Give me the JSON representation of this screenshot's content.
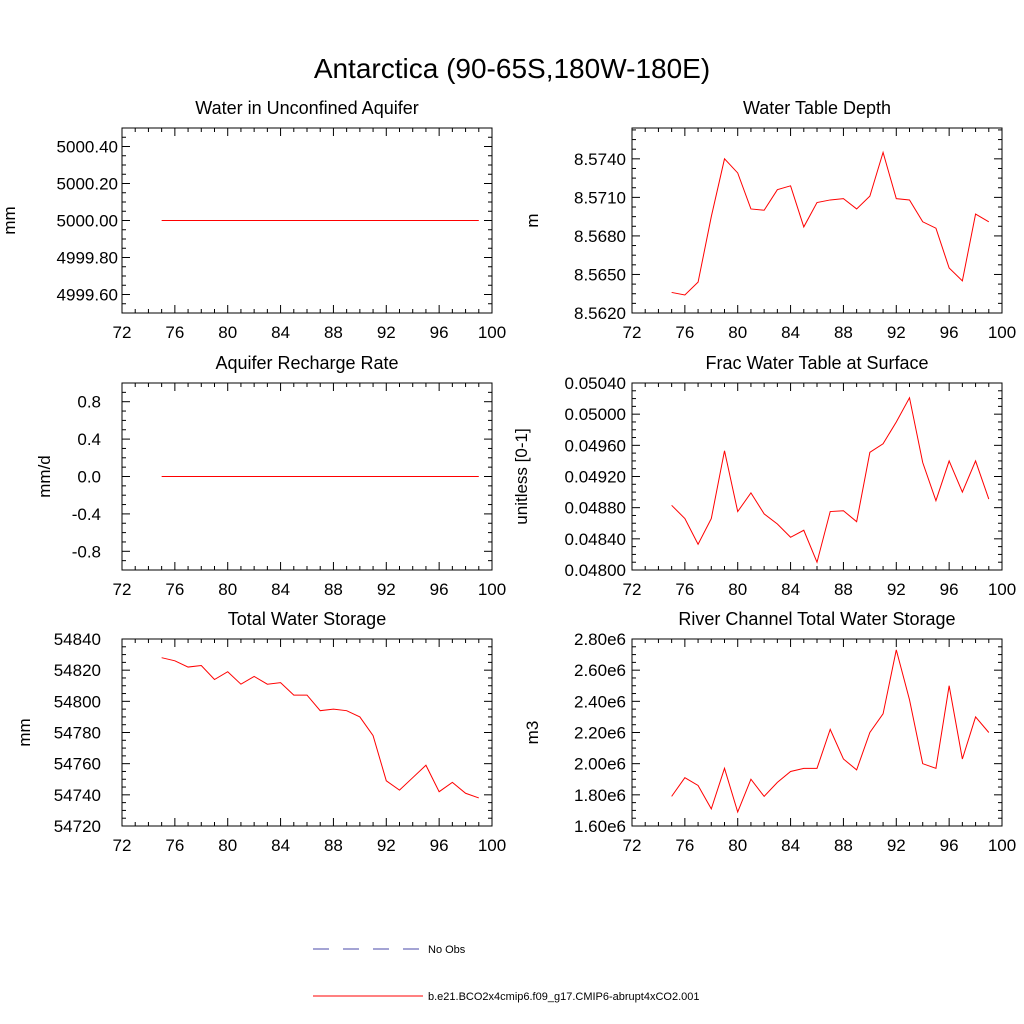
{
  "title": "Antarctica (90-65S,180W-180E)",
  "chart_data": [
    {
      "type": "line",
      "title": "Water in Unconfined Aquifer",
      "xlabel": "",
      "ylabel": "mm",
      "xlim": [
        72,
        100
      ],
      "ylim": [
        4999.5,
        5000.5
      ],
      "xticks": [
        72,
        76,
        80,
        84,
        88,
        92,
        96,
        100
      ],
      "xtick_labels": [
        "72",
        "76",
        "80",
        "84",
        "88",
        "92",
        "96",
        "100"
      ],
      "yticks": [
        4999.6,
        4999.8,
        5000.0,
        5000.2,
        5000.4
      ],
      "ytick_labels": [
        "4999.60",
        "4999.80",
        "5000.00",
        "5000.20",
        "5000.40"
      ],
      "series": [
        {
          "name": "b.e21.BCO2x4cmip6.f09_g17.CMIP6-abrupt4xCO2.001",
          "color": "#ff0000",
          "x": [
            75,
            76,
            77,
            78,
            79,
            80,
            81,
            82,
            83,
            84,
            85,
            86,
            87,
            88,
            89,
            90,
            91,
            92,
            93,
            94,
            95,
            96,
            97,
            98,
            99
          ],
          "values": [
            5000.0,
            5000.0,
            5000.0,
            5000.0,
            5000.0,
            5000.0,
            5000.0,
            5000.0,
            5000.0,
            5000.0,
            5000.0,
            5000.0,
            5000.0,
            5000.0,
            5000.0,
            5000.0,
            5000.0,
            5000.0,
            5000.0,
            5000.0,
            5000.0,
            5000.0,
            5000.0,
            5000.0,
            5000.0
          ]
        }
      ]
    },
    {
      "type": "line",
      "title": "Water Table Depth",
      "xlabel": "",
      "ylabel": "m",
      "xlim": [
        72,
        100
      ],
      "ylim": [
        8.562,
        8.5764
      ],
      "xticks": [
        72,
        76,
        80,
        84,
        88,
        92,
        96,
        100
      ],
      "xtick_labels": [
        "72",
        "76",
        "80",
        "84",
        "88",
        "92",
        "96",
        "100"
      ],
      "yticks": [
        8.562,
        8.565,
        8.568,
        8.571,
        8.574
      ],
      "ytick_labels": [
        "8.5620",
        "8.5650",
        "8.5680",
        "8.5710",
        "8.5740"
      ],
      "series": [
        {
          "name": "b.e21.BCO2x4cmip6.f09_g17.CMIP6-abrupt4xCO2.001",
          "color": "#ff0000",
          "x": [
            75,
            76,
            77,
            78,
            79,
            80,
            81,
            82,
            83,
            84,
            85,
            86,
            87,
            88,
            89,
            90,
            91,
            92,
            93,
            94,
            95,
            96,
            97,
            98,
            99
          ],
          "values": [
            8.5636,
            8.5634,
            8.5644,
            8.5695,
            8.574,
            8.5729,
            8.5701,
            8.57,
            8.5716,
            8.5719,
            8.5687,
            8.5706,
            8.5708,
            8.5709,
            8.5701,
            8.5711,
            8.5745,
            8.5709,
            8.5708,
            8.5691,
            8.5686,
            8.5655,
            8.5645,
            8.5697,
            8.5691
          ]
        }
      ]
    },
    {
      "type": "line",
      "title": "Aquifer Recharge Rate",
      "xlabel": "",
      "ylabel": "mm/d",
      "xlim": [
        72,
        100
      ],
      "ylim": [
        -1.0,
        1.0
      ],
      "xticks": [
        72,
        76,
        80,
        84,
        88,
        92,
        96,
        100
      ],
      "xtick_labels": [
        "72",
        "76",
        "80",
        "84",
        "88",
        "92",
        "96",
        "100"
      ],
      "yticks": [
        -0.8,
        -0.4,
        0.0,
        0.4,
        0.8
      ],
      "ytick_labels": [
        "-0.8",
        "-0.4",
        "0.0",
        "0.4",
        "0.8"
      ],
      "series": [
        {
          "name": "b.e21.BCO2x4cmip6.f09_g17.CMIP6-abrupt4xCO2.001",
          "color": "#ff0000",
          "x": [
            75,
            76,
            77,
            78,
            79,
            80,
            81,
            82,
            83,
            84,
            85,
            86,
            87,
            88,
            89,
            90,
            91,
            92,
            93,
            94,
            95,
            96,
            97,
            98,
            99
          ],
          "values": [
            0,
            0,
            0,
            0,
            0,
            0,
            0,
            0,
            0,
            0,
            0,
            0,
            0,
            0,
            0,
            0,
            0,
            0,
            0,
            0,
            0,
            0,
            0,
            0,
            0
          ]
        }
      ]
    },
    {
      "type": "line",
      "title": "Frac Water Table at Surface",
      "xlabel": "",
      "ylabel": "unitless [0-1]",
      "xlim": [
        72,
        100
      ],
      "ylim": [
        0.048,
        0.0504
      ],
      "xticks": [
        72,
        76,
        80,
        84,
        88,
        92,
        96,
        100
      ],
      "xtick_labels": [
        "72",
        "76",
        "80",
        "84",
        "88",
        "92",
        "96",
        "100"
      ],
      "yticks": [
        0.048,
        0.0484,
        0.0488,
        0.0492,
        0.0496,
        0.05,
        0.0504
      ],
      "ytick_labels": [
        "0.04800",
        "0.04840",
        "0.04880",
        "0.04920",
        "0.04960",
        "0.05000",
        "0.05040"
      ],
      "series": [
        {
          "name": "b.e21.BCO2x4cmip6.f09_g17.CMIP6-abrupt4xCO2.001",
          "color": "#ff0000",
          "x": [
            75,
            76,
            77,
            78,
            79,
            80,
            81,
            82,
            83,
            84,
            85,
            86,
            87,
            88,
            89,
            90,
            91,
            92,
            93,
            94,
            95,
            96,
            97,
            98,
            99
          ],
          "values": [
            0.04883,
            0.04866,
            0.04833,
            0.04866,
            0.04953,
            0.04875,
            0.04899,
            0.04872,
            0.04859,
            0.04842,
            0.04851,
            0.0481,
            0.04875,
            0.04876,
            0.04862,
            0.04951,
            0.04962,
            0.0499,
            0.05021,
            0.04938,
            0.04889,
            0.0494,
            0.049,
            0.0494,
            0.04891
          ]
        }
      ]
    },
    {
      "type": "line",
      "title": "Total Water Storage",
      "xlabel": "",
      "ylabel": "mm",
      "xlim": [
        72,
        100
      ],
      "ylim": [
        54720,
        54840
      ],
      "xticks": [
        72,
        76,
        80,
        84,
        88,
        92,
        96,
        100
      ],
      "xtick_labels": [
        "72",
        "76",
        "80",
        "84",
        "88",
        "92",
        "96",
        "100"
      ],
      "yticks": [
        54720,
        54740,
        54760,
        54780,
        54800,
        54820,
        54840
      ],
      "ytick_labels": [
        "54720",
        "54740",
        "54760",
        "54780",
        "54800",
        "54820",
        "54840"
      ],
      "series": [
        {
          "name": "b.e21.BCO2x4cmip6.f09_g17.CMIP6-abrupt4xCO2.001",
          "color": "#ff0000",
          "x": [
            75,
            76,
            77,
            78,
            79,
            80,
            81,
            82,
            83,
            84,
            85,
            86,
            87,
            88,
            89,
            90,
            91,
            92,
            93,
            94,
            95,
            96,
            97,
            98,
            99
          ],
          "values": [
            54828,
            54826,
            54822,
            54823,
            54814,
            54819,
            54811,
            54816,
            54811,
            54812,
            54804,
            54804,
            54794,
            54795,
            54794,
            54790,
            54778,
            54749,
            54743,
            54751,
            54759,
            54742,
            54748,
            54741,
            54738
          ]
        }
      ]
    },
    {
      "type": "line",
      "title": "River Channel Total Water Storage",
      "xlabel": "",
      "ylabel": "m3",
      "xlim": [
        72,
        100
      ],
      "ylim": [
        1600000,
        2800000
      ],
      "xticks": [
        72,
        76,
        80,
        84,
        88,
        92,
        96,
        100
      ],
      "xtick_labels": [
        "72",
        "76",
        "80",
        "84",
        "88",
        "92",
        "96",
        "100"
      ],
      "yticks": [
        1600000,
        1800000,
        2000000,
        2200000,
        2400000,
        2600000,
        2800000
      ],
      "ytick_labels": [
        "1.60e6",
        "1.80e6",
        "2.00e6",
        "2.20e6",
        "2.40e6",
        "2.60e6",
        "2.80e6"
      ],
      "series": [
        {
          "name": "b.e21.BCO2x4cmip6.f09_g17.CMIP6-abrupt4xCO2.001",
          "color": "#ff0000",
          "x": [
            75,
            76,
            77,
            78,
            79,
            80,
            81,
            82,
            83,
            84,
            85,
            86,
            87,
            88,
            89,
            90,
            91,
            92,
            93,
            94,
            95,
            96,
            97,
            98,
            99
          ],
          "values": [
            1790000,
            1910000,
            1860000,
            1710000,
            1970000,
            1690000,
            1900000,
            1790000,
            1880000,
            1950000,
            1970000,
            1970000,
            2220000,
            2030000,
            1960000,
            2200000,
            2320000,
            2730000,
            2410000,
            2000000,
            1970000,
            2500000,
            2030000,
            2300000,
            2200000
          ]
        }
      ]
    }
  ],
  "legend": [
    {
      "label": "No Obs",
      "color": "#4a4aa8",
      "style": "dashed"
    },
    {
      "label": "b.e21.BCO2x4cmip6.f09_g17.CMIP6-abrupt4xCO2.001",
      "color": "#ff0000",
      "style": "solid"
    }
  ]
}
